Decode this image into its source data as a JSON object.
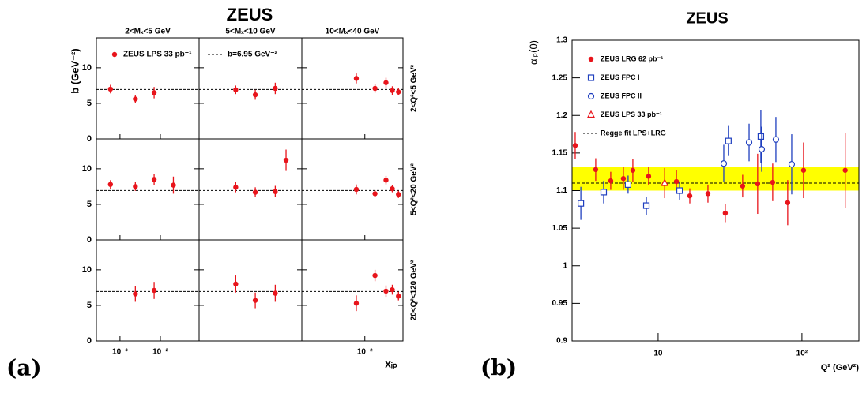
{
  "chart_data": [
    {
      "type": "scatter-grid",
      "title": "ZEUS",
      "panel_label": "(a)",
      "ylabel": "b (GeV⁻²)",
      "xlabel": "xᵢₚ",
      "log_x": true,
      "xlim": [
        0.00026,
        0.091
      ],
      "ylim": [
        0,
        14.2
      ],
      "yticks": [
        0,
        5,
        10
      ],
      "columns": [
        {
          "title": "2<Mₓ<5 GeV",
          "xticks": [
            {
              "value": 0.001,
              "label": "10⁻³"
            },
            {
              "value": 0.01,
              "label": "10⁻²"
            }
          ]
        },
        {
          "title": "5<Mₓ<10 GeV",
          "xticks": []
        },
        {
          "title": "10<Mₓ<40 GeV",
          "xticks": [
            {
              "value": 0.01,
              "label": "10⁻²"
            }
          ]
        }
      ],
      "rows": [
        "2<Q²<5 GeV²",
        "5<Q²<20 GeV²",
        "20<Q²<120 GeV²"
      ],
      "fit": {
        "value": 6.95,
        "label": "b=6.95 GeV⁻²"
      },
      "series": [
        {
          "name": "ZEUS LPS 33 pb⁻¹",
          "color": "#e8141b",
          "panels": [
            {
              "x": [
                0.00058,
                0.0024,
                0.007
              ],
              "y": [
                7.0,
                5.6,
                6.5
              ],
              "errors": [
                0.6,
                0.5,
                0.8
              ]
            },
            {
              "x": [
                0.0021,
                0.0064,
                0.02
              ],
              "y": [
                6.9,
                6.2,
                7.1
              ],
              "errors": [
                0.6,
                0.7,
                0.8
              ]
            },
            {
              "x": [
                0.0061,
                0.018,
                0.034,
                0.049,
                0.07
              ],
              "y": [
                8.5,
                7.1,
                7.9,
                6.8,
                6.6
              ],
              "errors": [
                0.7,
                0.6,
                0.7,
                0.6,
                0.5
              ]
            },
            {
              "x": [
                0.00058,
                0.0024,
                0.007,
                0.021
              ],
              "y": [
                7.8,
                7.5,
                8.5,
                7.7
              ],
              "errors": [
                0.6,
                0.6,
                0.8,
                1.2
              ]
            },
            {
              "x": [
                0.0021,
                0.0064,
                0.02,
                0.037
              ],
              "y": [
                7.4,
                6.7,
                6.8,
                11.2
              ],
              "errors": [
                0.7,
                0.7,
                0.8,
                1.5
              ]
            },
            {
              "x": [
                0.0061,
                0.018,
                0.034,
                0.049,
                0.07
              ],
              "y": [
                7.1,
                6.5,
                8.4,
                7.2,
                6.4
              ],
              "errors": [
                0.7,
                0.5,
                0.6,
                0.5,
                0.5
              ]
            },
            {
              "x": [
                0.0024,
                0.007
              ],
              "y": [
                6.6,
                7.1
              ],
              "errors": [
                1.1,
                1.2
              ]
            },
            {
              "x": [
                0.0021,
                0.0064,
                0.02
              ],
              "y": [
                8.0,
                5.7,
                6.7
              ],
              "errors": [
                1.2,
                1.1,
                1.2
              ]
            },
            {
              "x": [
                0.0061,
                0.018,
                0.034,
                0.049,
                0.07
              ],
              "y": [
                5.3,
                9.2,
                7.0,
                7.2,
                6.3
              ],
              "errors": [
                1.1,
                0.8,
                0.8,
                0.7,
                0.6
              ]
            }
          ]
        }
      ]
    },
    {
      "type": "scatter",
      "title": "ZEUS",
      "panel_label": "(b)",
      "xlabel": "Q² (GeV²)",
      "ylabel": "αᵢₚ(0)",
      "log_x": true,
      "xlim": [
        2.52,
        249
      ],
      "xticks": [
        10,
        {
          "value": 100,
          "label": "10²"
        }
      ],
      "ylim": [
        0.9,
        1.3
      ],
      "yticks": [
        0.9,
        0.95,
        1,
        1.05,
        1.1,
        1.15,
        1.2,
        1.25,
        1.3
      ],
      "fit": {
        "name": "Regge fit LPS+LRG",
        "value": 1.11,
        "band": [
          1.1,
          1.132
        ],
        "band_color": "#ffff00"
      },
      "series": [
        {
          "name": "ZEUS LRG 62 pb⁻¹",
          "color": "#e8141b",
          "marker": "dot",
          "x": [
            2.65,
            3.68,
            4.68,
            5.73,
            6.67,
            8.59,
            13.4,
            16.6,
            22.2,
            29.3,
            38.7,
            49.2,
            62.6,
            79.6,
            102.6,
            200
          ],
          "y": [
            1.16,
            1.128,
            1.113,
            1.116,
            1.127,
            1.119,
            1.112,
            1.093,
            1.096,
            1.07,
            1.106,
            1.109,
            1.111,
            1.084,
            1.127,
            1.127
          ],
          "errors": [
            0.018,
            0.015,
            0.012,
            0.015,
            0.015,
            0.012,
            0.015,
            0.01,
            0.012,
            0.012,
            0.015,
            0.04,
            0.025,
            0.03,
            0.037,
            0.05
          ]
        },
        {
          "name": "ZEUS FPC I",
          "color": "#1f3fbf",
          "marker": "square",
          "x": [
            2.9,
            4.18,
            6.18,
            8.28,
            14.1,
            30.8,
            51.8
          ],
          "y": [
            1.083,
            1.098,
            1.108,
            1.08,
            1.1,
            1.166,
            1.172
          ],
          "errors": [
            0.022,
            0.015,
            0.012,
            0.012,
            0.012,
            0.02,
            0.035
          ]
        },
        {
          "name": "ZEUS FPC II",
          "color": "#1f3fbf",
          "marker": "circle",
          "x": [
            28.6,
            42.9,
            52.5,
            65.9,
            84.9
          ],
          "y": [
            1.136,
            1.164,
            1.155,
            1.168,
            1.135
          ],
          "errors": [
            0.025,
            0.025,
            0.03,
            0.03,
            0.04
          ]
        },
        {
          "name": "ZEUS LPS 33 pb⁻¹",
          "color": "#e8141b",
          "marker": "triangle",
          "x": [
            11.1
          ],
          "y": [
            1.11
          ],
          "errors": [
            0.02
          ]
        }
      ]
    }
  ]
}
